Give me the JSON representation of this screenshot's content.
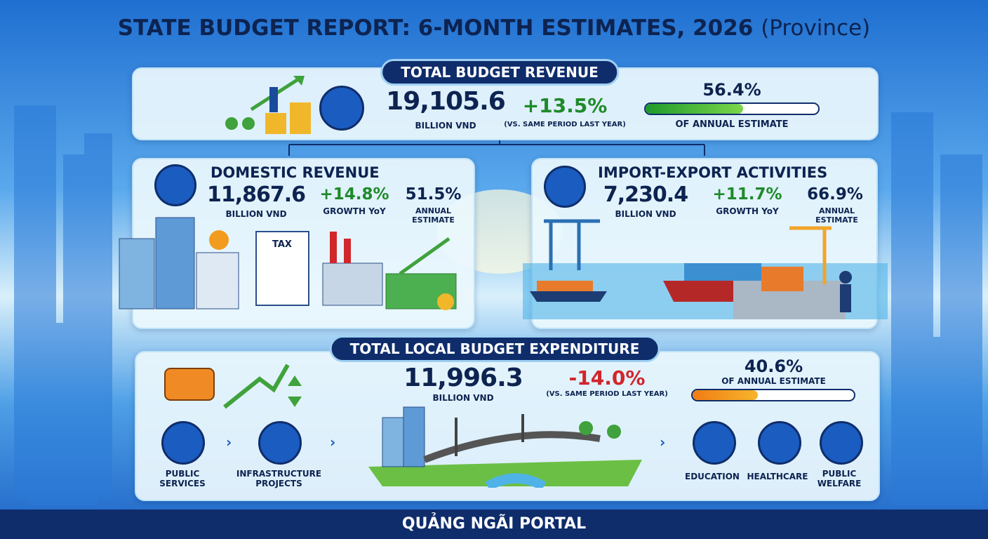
{
  "title": "STATE BUDGET REPORT: 6-MONTH ESTIMATES, 2026",
  "title_suffix": "(Province)",
  "revenue": {
    "heading": "TOTAL BUDGET REVENUE",
    "amount": "19,105.6",
    "unit": "BILLION VND",
    "change": "+13.5%",
    "change_note": "(VS. SAME PERIOD LAST YEAR)",
    "progress": {
      "value": 56.4,
      "label": "56.4%"
    },
    "progress_note": "OF ANNUAL ESTIMATE"
  },
  "domestic": {
    "heading": "DOMESTIC REVENUE",
    "amount": "11,867.6",
    "unit": "BILLION VND",
    "growth": "+14.8%",
    "growth_note": "GROWTH YoY",
    "share": "51.5%",
    "share_note": "ANNUAL ESTIMATE",
    "illustration_label": "TAX"
  },
  "import_export": {
    "heading": "IMPORT-EXPORT ACTIVITIES",
    "amount": "7,230.4",
    "unit": "BILLION VND",
    "growth": "+11.7%",
    "growth_note": "GROWTH YoY",
    "share": "66.9%",
    "share_note": "ANNUAL ESTIMATE"
  },
  "expenditure": {
    "heading": "TOTAL LOCAL BUDGET  EXPENDITURE",
    "amount": "11,996.3",
    "unit": "BILLION VND",
    "change": "-14.0%",
    "change_note": "(VS. SAME PERIOD LAST YEAR)",
    "progress": {
      "value": 40.6,
      "label": "40.6%"
    },
    "progress_note": "OF ANNUAL ESTIMATE",
    "flow": [
      "PUBLIC SERVICES",
      "INFRASTRUCTURE PROJECTS"
    ],
    "sectors": [
      "EDUCATION",
      "HEALTHCARE",
      "PUBLIC WELFARE"
    ]
  },
  "footer": "QUẢNG NGÃI PORTAL"
}
